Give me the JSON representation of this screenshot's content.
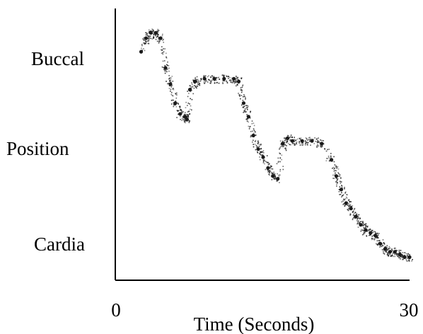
{
  "chart_data": {
    "type": "scatter",
    "xlabel": "Time (Seconds)",
    "ylabel": "Position",
    "x_tick_labels": [
      "0",
      "30"
    ],
    "xlim": [
      0,
      30
    ],
    "y_category_labels": [
      "Buccal",
      "Cardia"
    ],
    "ylim": [
      0,
      1
    ],
    "y_positions": {
      "Buccal": 0.93,
      "Cardia": 0.15
    },
    "grid": false,
    "legend": "none",
    "point_color": "#1a1a1a",
    "series": [
      {
        "x": [
          2.5,
          3.0,
          3.5,
          4.0,
          4.5,
          5.0,
          5.5,
          6.0,
          6.5,
          7.0,
          7.2,
          7.5,
          8.0,
          9.0,
          10.0,
          11.0,
          12.0,
          12.5,
          13.0,
          13.5,
          14.0,
          14.5,
          15.0,
          15.5,
          16.0,
          16.5,
          17.0,
          17.5,
          18.0,
          19.0,
          20.0,
          21.0,
          22.0,
          22.5,
          23.0,
          23.5,
          24.0,
          24.5,
          25.0,
          25.5,
          26.0,
          26.5,
          27.0,
          27.5,
          28.0,
          28.5,
          29.0,
          29.5,
          30.0
        ],
        "y": [
          0.84,
          0.89,
          0.91,
          0.91,
          0.89,
          0.78,
          0.72,
          0.65,
          0.61,
          0.6,
          0.59,
          0.7,
          0.73,
          0.74,
          0.74,
          0.74,
          0.74,
          0.73,
          0.65,
          0.6,
          0.53,
          0.48,
          0.45,
          0.41,
          0.38,
          0.37,
          0.5,
          0.52,
          0.51,
          0.51,
          0.51,
          0.5,
          0.44,
          0.38,
          0.33,
          0.28,
          0.26,
          0.23,
          0.2,
          0.18,
          0.17,
          0.16,
          0.13,
          0.11,
          0.1,
          0.1,
          0.09,
          0.08,
          0.08
        ]
      }
    ]
  }
}
